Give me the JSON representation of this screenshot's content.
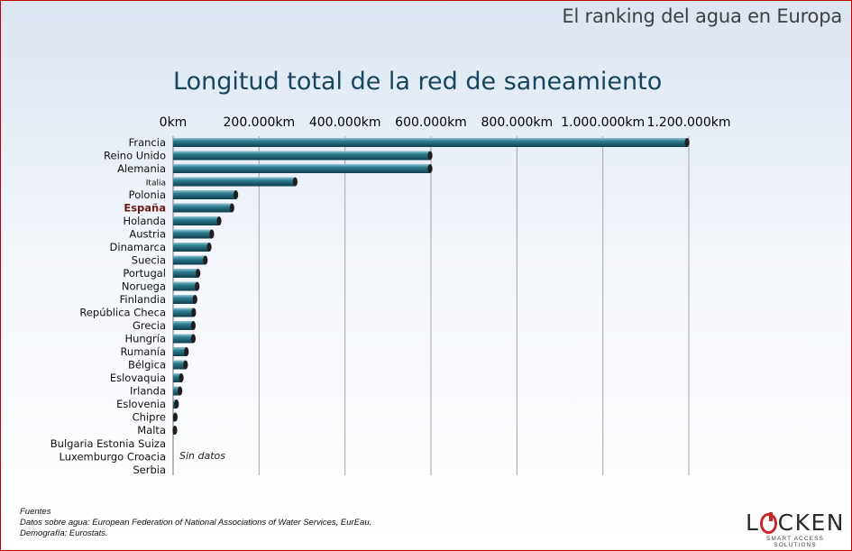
{
  "header": {
    "title": "El ranking del agua en Europa"
  },
  "chart_data": {
    "type": "bar",
    "orientation": "horizontal",
    "title": "Longitud total de la red de saneamiento",
    "xlim": [
      0,
      1200000
    ],
    "x_ticks": [
      0,
      200000,
      400000,
      600000,
      800000,
      1000000,
      1200000
    ],
    "x_tick_labels": [
      "0km",
      "200.000km",
      "400.000km",
      "600.000km",
      "800.000km",
      "1.000.000km",
      "1.200.000km"
    ],
    "x_axis_position": "top",
    "grid": "vertical",
    "highlight_category": "España",
    "bar_color": "#2e7d91",
    "categories": [
      "Francia",
      "Reino  Unido",
      "Alemania",
      "Italia",
      "Polonia",
      "España",
      "Holanda",
      "Austria",
      "Dinamarca",
      "Suecia",
      "Portugal",
      "Noruega",
      "Finlandia",
      "República  Checa",
      "Grecia",
      "Hungría",
      "Rumanía",
      "Bélgica",
      "Eslovaquia",
      "Irlanda",
      "Eslovenia",
      "Chipre",
      "Malta"
    ],
    "values": [
      1196000,
      598000,
      598000,
      284000,
      146000,
      137000,
      107000,
      90000,
      84000,
      75000,
      58000,
      56000,
      51000,
      48000,
      47000,
      47000,
      31000,
      29000,
      19000,
      16000,
      8000,
      5000,
      3000
    ],
    "no_data": {
      "lines": [
        "Bulgaria Estonia Suiza",
        "Luxemburgo Croacia",
        "Serbia"
      ],
      "label": "Sin datos"
    }
  },
  "footer": {
    "sources_lines": [
      "Fuentes",
      "Datos sobre agua: European Federation of National Associations of Water Services, EurEau.",
      "Demografía: Eurostats."
    ]
  },
  "logo": {
    "text_1": "L",
    "text_2": "CKEN",
    "tagline": "SMART ACCESS SOLUTIONS"
  }
}
